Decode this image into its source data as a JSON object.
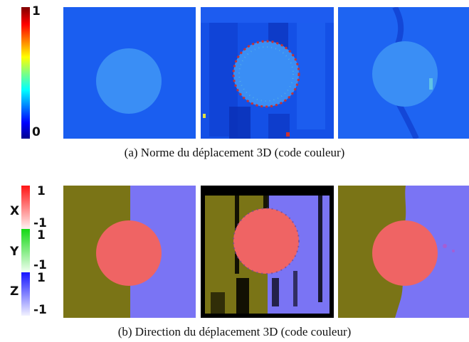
{
  "panel_a": {
    "caption": "(a) Norme du déplacement 3D (code couleur)",
    "colorbar": {
      "max_label": "1",
      "min_label": "0"
    }
  },
  "panel_b": {
    "caption": "(b) Direction du déplacement 3D (code couleur)",
    "colorbars": [
      {
        "axis": "X",
        "max_label": "1",
        "min_label": "-1",
        "color": "#ff2a2a"
      },
      {
        "axis": "Y",
        "max_label": "1",
        "min_label": "-1",
        "color": "#22cc22"
      },
      {
        "axis": "Z",
        "max_label": "1",
        "min_label": "-1",
        "color": "#2a2aff"
      }
    ]
  },
  "colors": {
    "blue_bg": "#1a5ef0",
    "disk_blue": "#3a8ef5",
    "olive": "#7a7416",
    "lavender": "#7a74f4",
    "disk_red": "#ef6464"
  }
}
